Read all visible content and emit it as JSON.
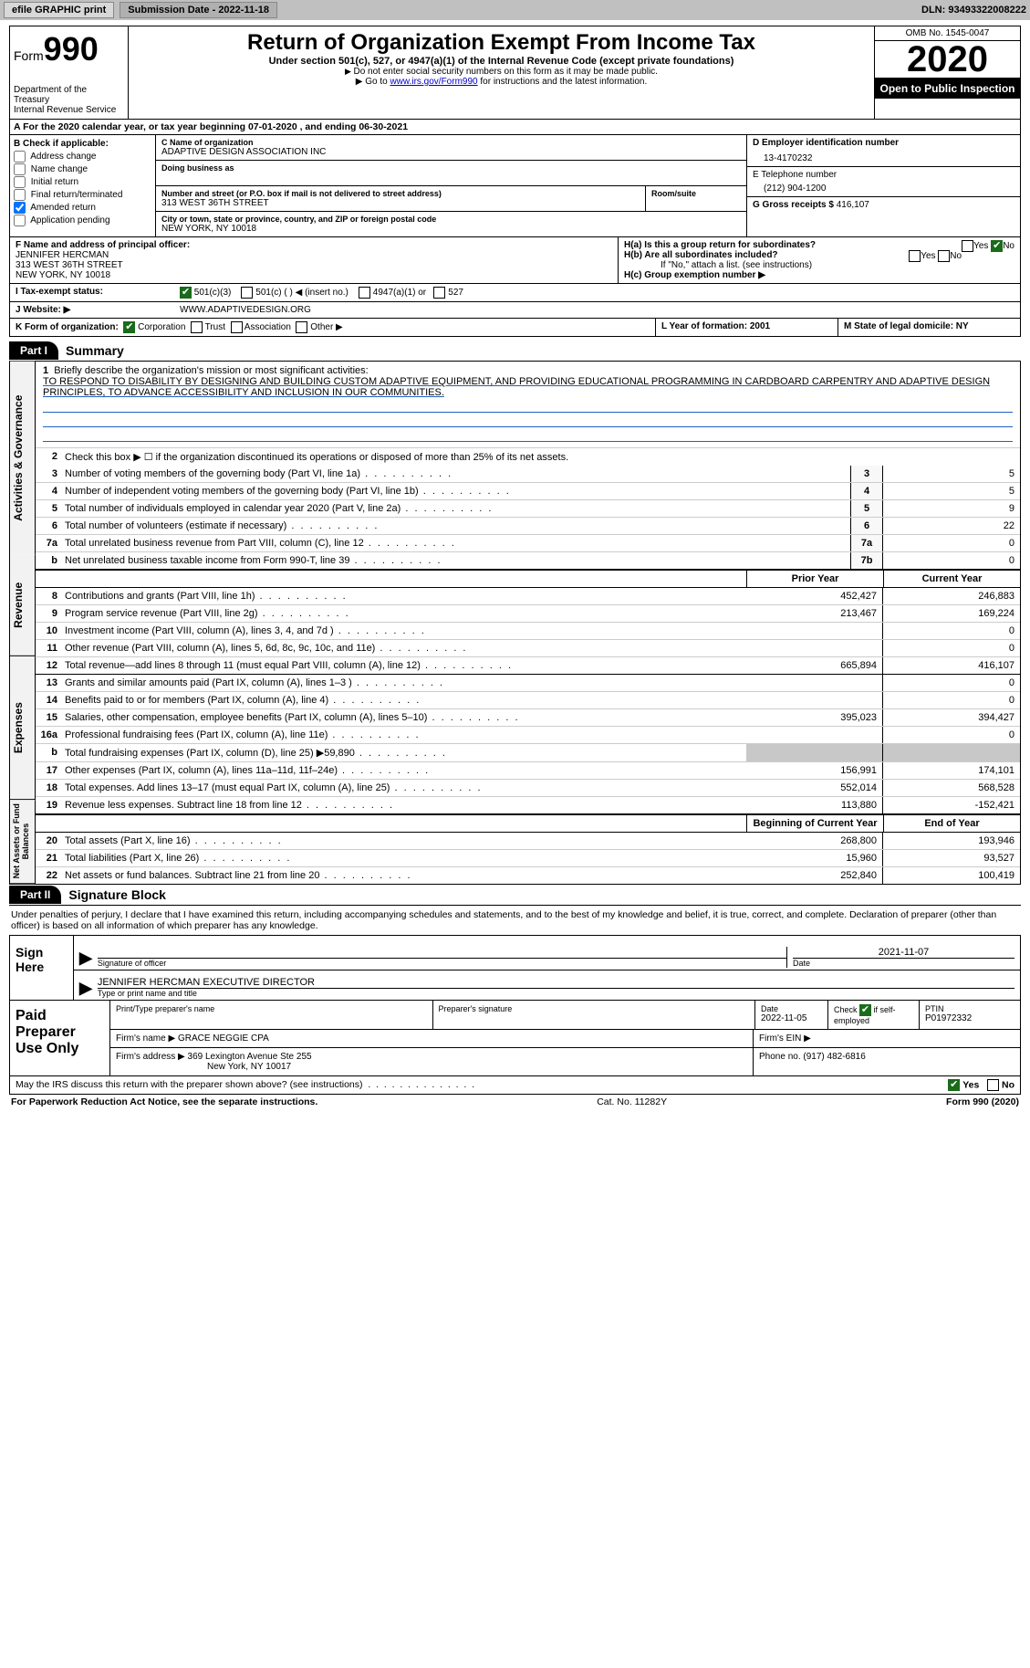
{
  "topbar": {
    "efile_label": "efile GRAPHIC print",
    "submission_label": "Submission Date - 2022-11-18",
    "dln": "DLN: 93493322008222"
  },
  "header": {
    "form_label": "Form",
    "form_num": "990",
    "dept": "Department of the Treasury",
    "irs": "Internal Revenue Service",
    "title": "Return of Organization Exempt From Income Tax",
    "subtitle": "Under section 501(c), 527, or 4947(a)(1) of the Internal Revenue Code (except private foundations)",
    "note1": "Do not enter social security numbers on this form as it may be made public.",
    "note2_pre": "Go to ",
    "note2_link": "www.irs.gov/Form990",
    "note2_post": " for instructions and the latest information.",
    "omb": "OMB No. 1545-0047",
    "year": "2020",
    "inspect": "Open to Public Inspection"
  },
  "rowA": "A For the 2020 calendar year, or tax year beginning 07-01-2020    , and ending 06-30-2021",
  "boxB": {
    "hdr": "B Check if applicable:",
    "items": [
      "Address change",
      "Name change",
      "Initial return",
      "Final return/terminated",
      "Amended return",
      "Application pending"
    ],
    "checked_index": 4
  },
  "boxC": {
    "org_lbl": "C Name of organization",
    "org_name": "ADAPTIVE DESIGN ASSOCIATION INC",
    "dba_lbl": "Doing business as",
    "addr_lbl": "Number and street (or P.O. box if mail is not delivered to street address)",
    "room_lbl": "Room/suite",
    "addr": "313 WEST 36TH STREET",
    "city_lbl": "City or town, state or province, country, and ZIP or foreign postal code",
    "city": "NEW YORK, NY  10018"
  },
  "boxD": {
    "lbl": "D Employer identification number",
    "val": "13-4170232"
  },
  "boxE": {
    "lbl": "E Telephone number",
    "val": "(212) 904-1200"
  },
  "boxG": {
    "lbl": "G Gross receipts $",
    "val": "416,107"
  },
  "boxF": {
    "lbl": "F Name and address of principal officer:",
    "name": "JENNIFER HERCMAN",
    "addr1": "313 WEST 36TH STREET",
    "addr2": "NEW YORK, NY  10018"
  },
  "boxH": {
    "ha": "H(a)  Is this a group return for subordinates?",
    "hb": "H(b)  Are all subordinates included?",
    "hb_note": "If \"No,\" attach a list. (see instructions)",
    "hc": "H(c)  Group exemption number ▶",
    "yes": "Yes",
    "no": "No"
  },
  "taxExempt": {
    "lbl": "I    Tax-exempt status:",
    "opts": [
      "501(c)(3)",
      "501(c) (  ) ◀ (insert no.)",
      "4947(a)(1) or",
      "527"
    ]
  },
  "website": {
    "lbl": "J    Website: ▶",
    "val": "WWW.ADAPTIVEDESIGN.ORG"
  },
  "boxK": {
    "lbl": "K Form of organization:",
    "opts": [
      "Corporation",
      "Trust",
      "Association",
      "Other ▶"
    ]
  },
  "boxL": "L Year of formation: 2001",
  "boxM": "M State of legal domicile: NY",
  "part1": {
    "num": "Part I",
    "title": "Summary"
  },
  "mission": {
    "lbl": "Briefly describe the organization's mission or most significant activities:",
    "text": "TO RESPOND TO DISABILITY BY DESIGNING AND BUILDING CUSTOM ADAPTIVE EQUIPMENT, AND PROVIDING EDUCATIONAL PROGRAMMING IN CARDBOARD CARPENTRY AND ADAPTIVE DESIGN PRINCIPLES, TO ADVANCE ACCESSIBILITY AND INCLUSION IN OUR COMMUNITIES."
  },
  "governance": {
    "line2": "Check this box ▶ ☐  if the organization discontinued its operations or disposed of more than 25% of its net assets.",
    "rows": [
      {
        "n": "3",
        "d": "Number of voting members of the governing body (Part VI, line 1a)",
        "k": "3",
        "v": "5"
      },
      {
        "n": "4",
        "d": "Number of independent voting members of the governing body (Part VI, line 1b)",
        "k": "4",
        "v": "5"
      },
      {
        "n": "5",
        "d": "Total number of individuals employed in calendar year 2020 (Part V, line 2a)",
        "k": "5",
        "v": "9"
      },
      {
        "n": "6",
        "d": "Total number of volunteers (estimate if necessary)",
        "k": "6",
        "v": "22"
      },
      {
        "n": "7a",
        "d": "Total unrelated business revenue from Part VIII, column (C), line 12",
        "k": "7a",
        "v": "0"
      },
      {
        "n": "b",
        "d": "Net unrelated business taxable income from Form 990-T, line 39",
        "k": "7b",
        "v": "0"
      }
    ]
  },
  "tablehdr": {
    "prior": "Prior Year",
    "current": "Current Year"
  },
  "revenue": [
    {
      "n": "8",
      "d": "Contributions and grants (Part VIII, line 1h)",
      "p": "452,427",
      "c": "246,883"
    },
    {
      "n": "9",
      "d": "Program service revenue (Part VIII, line 2g)",
      "p": "213,467",
      "c": "169,224"
    },
    {
      "n": "10",
      "d": "Investment income (Part VIII, column (A), lines 3, 4, and 7d )",
      "p": "",
      "c": "0"
    },
    {
      "n": "11",
      "d": "Other revenue (Part VIII, column (A), lines 5, 6d, 8c, 9c, 10c, and 11e)",
      "p": "",
      "c": "0"
    },
    {
      "n": "12",
      "d": "Total revenue—add lines 8 through 11 (must equal Part VIII, column (A), line 12)",
      "p": "665,894",
      "c": "416,107"
    }
  ],
  "expenses": [
    {
      "n": "13",
      "d": "Grants and similar amounts paid (Part IX, column (A), lines 1–3 )",
      "p": "",
      "c": "0"
    },
    {
      "n": "14",
      "d": "Benefits paid to or for members (Part IX, column (A), line 4)",
      "p": "",
      "c": "0"
    },
    {
      "n": "15",
      "d": "Salaries, other compensation, employee benefits (Part IX, column (A), lines 5–10)",
      "p": "395,023",
      "c": "394,427"
    },
    {
      "n": "16a",
      "d": "Professional fundraising fees (Part IX, column (A), line 11e)",
      "p": "",
      "c": "0"
    },
    {
      "n": "b",
      "d": "Total fundraising expenses (Part IX, column (D), line 25) ▶59,890",
      "p": "SHADE",
      "c": "SHADE"
    },
    {
      "n": "17",
      "d": "Other expenses (Part IX, column (A), lines 11a–11d, 11f–24e)",
      "p": "156,991",
      "c": "174,101"
    },
    {
      "n": "18",
      "d": "Total expenses. Add lines 13–17 (must equal Part IX, column (A), line 25)",
      "p": "552,014",
      "c": "568,528"
    },
    {
      "n": "19",
      "d": "Revenue less expenses. Subtract line 18 from line 12",
      "p": "113,880",
      "c": "-152,421"
    }
  ],
  "tablehdr2": {
    "prior": "Beginning of Current Year",
    "current": "End of Year"
  },
  "netassets": [
    {
      "n": "20",
      "d": "Total assets (Part X, line 16)",
      "p": "268,800",
      "c": "193,946"
    },
    {
      "n": "21",
      "d": "Total liabilities (Part X, line 26)",
      "p": "15,960",
      "c": "93,527"
    },
    {
      "n": "22",
      "d": "Net assets or fund balances. Subtract line 21 from line 20",
      "p": "252,840",
      "c": "100,419"
    }
  ],
  "vtabs": {
    "gov": "Activities & Governance",
    "rev": "Revenue",
    "exp": "Expenses",
    "net": "Net Assets or Fund Balances"
  },
  "part2": {
    "num": "Part II",
    "title": "Signature Block"
  },
  "sig": {
    "text": "Under penalties of perjury, I declare that I have examined this return, including accompanying schedules and statements, and to the best of my knowledge and belief, it is true, correct, and complete. Declaration of preparer (other than officer) is based on all information of which preparer has any knowledge.",
    "sign_here": "Sign Here",
    "sig_lbl": "Signature of officer",
    "date_lbl": "Date",
    "date_val": "2021-11-07",
    "name": "JENNIFER HERCMAN  EXECUTIVE DIRECTOR",
    "name_lbl": "Type or print name and title"
  },
  "prep": {
    "hdr": "Paid Preparer Use Only",
    "c1": "Print/Type preparer's name",
    "c2": "Preparer's signature",
    "c3": "Date",
    "c3v": "2022-11-05",
    "c4a": "Check",
    "c4b": "if self-employed",
    "c5": "PTIN",
    "c5v": "P01972332",
    "firm_lbl": "Firm's name    ▶",
    "firm": "GRACE NEGGIE CPA",
    "ein_lbl": "Firm's EIN ▶",
    "addr_lbl": "Firm's address ▶",
    "addr": "369 Lexington Avenue Ste 255",
    "addr2": "New York, NY  10017",
    "phone_lbl": "Phone no.",
    "phone": "(917) 482-6816"
  },
  "discuss": {
    "q": "May the IRS discuss this return with the preparer shown above? (see instructions)",
    "yes": "Yes",
    "no": "No"
  },
  "footer": {
    "left": "For Paperwork Reduction Act Notice, see the separate instructions.",
    "mid": "Cat. No. 11282Y",
    "right": "Form 990 (2020)"
  }
}
